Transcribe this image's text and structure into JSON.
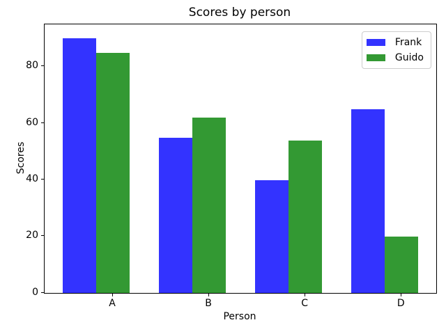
{
  "chart_data": {
    "type": "bar",
    "title": "Scores by person",
    "xlabel": "Person",
    "ylabel": "Scores",
    "categories": [
      "A",
      "B",
      "C",
      "D"
    ],
    "series": [
      {
        "name": "Frank",
        "color": "#3333ff",
        "values": [
          90,
          55,
          40,
          65
        ]
      },
      {
        "name": "Guido",
        "color": "#339933",
        "values": [
          85,
          62,
          54,
          20
        ]
      }
    ],
    "yticks": [
      0,
      20,
      40,
      60,
      80
    ],
    "ylim": [
      0,
      95
    ],
    "xlim": [
      -0.36,
      3.71
    ],
    "bar_width": 0.35,
    "grid": false,
    "legend_position": "upper right",
    "background_color": "#ffffff",
    "axis_color": "#000000",
    "legend_border_color": "#cccccc"
  }
}
